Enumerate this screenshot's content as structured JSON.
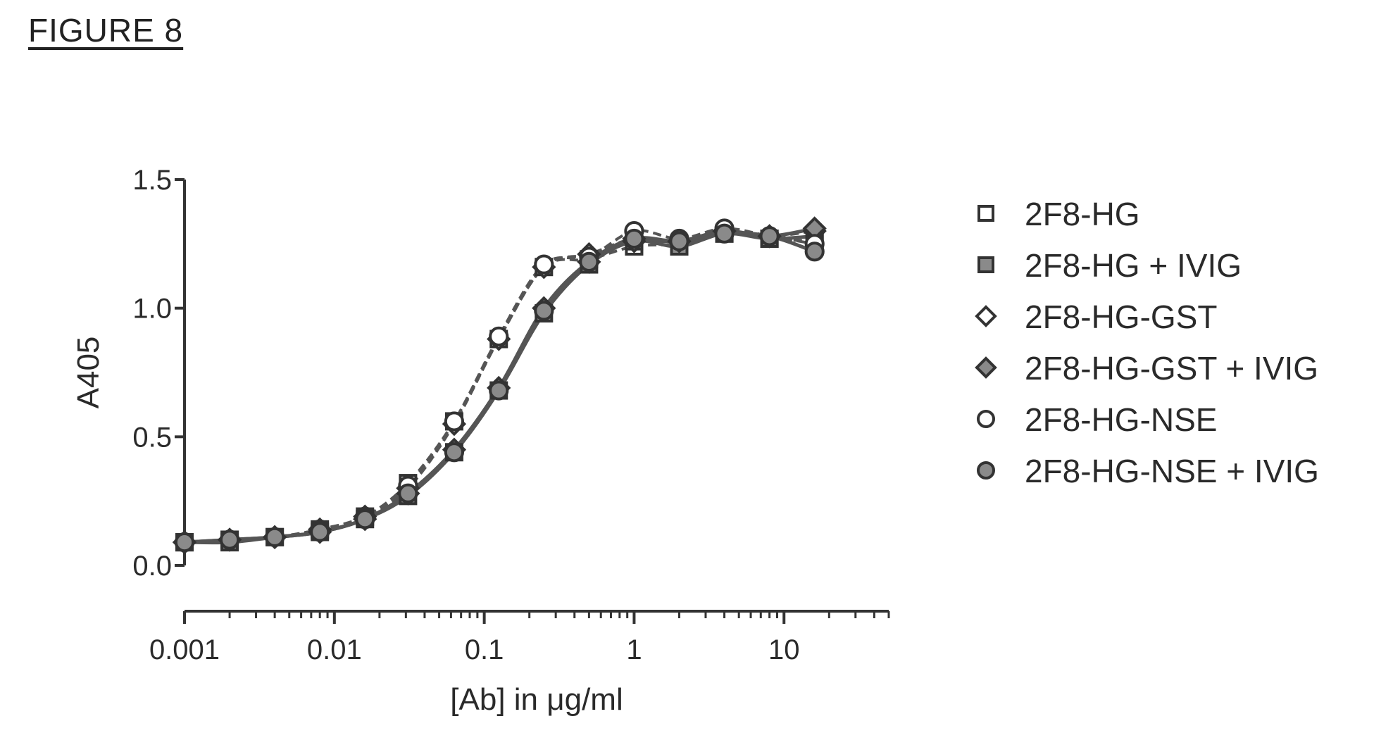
{
  "figure_label": "FIGURE 8",
  "chart_data": {
    "type": "scatter",
    "xlabel": "[Ab] in μg/ml",
    "ylabel": "A405",
    "x_scale": "log",
    "xlim": [
      0.001,
      50
    ],
    "ylim": [
      0,
      1.5
    ],
    "x_ticks": [
      0.001,
      0.01,
      0.1,
      1,
      10
    ],
    "x_tick_labels": [
      "0.001",
      "0.01",
      "0.1",
      "1",
      "10"
    ],
    "y_ticks": [
      0.0,
      0.5,
      1.0,
      1.5
    ],
    "y_tick_labels": [
      "0.0",
      "0.5",
      "1.0",
      "1.5"
    ],
    "grid": false,
    "legend_position": "right",
    "series": [
      {
        "name": "2F8-HG",
        "marker": "square-open",
        "line": "dashed",
        "x": [
          0.001,
          0.002,
          0.004,
          0.008,
          0.016,
          0.031,
          0.063,
          0.125,
          0.25,
          0.5,
          1,
          2,
          4,
          8,
          16
        ],
        "y": [
          0.09,
          0.1,
          0.11,
          0.14,
          0.19,
          0.32,
          0.56,
          0.88,
          1.16,
          1.19,
          1.24,
          1.25,
          1.29,
          1.27,
          1.26
        ]
      },
      {
        "name": "2F8-HG + IVIG",
        "marker": "square-filled",
        "line": "solid",
        "x": [
          0.001,
          0.002,
          0.004,
          0.008,
          0.016,
          0.031,
          0.063,
          0.125,
          0.25,
          0.5,
          1,
          2,
          4,
          8,
          16
        ],
        "y": [
          0.09,
          0.09,
          0.11,
          0.13,
          0.18,
          0.27,
          0.44,
          0.68,
          0.98,
          1.17,
          1.26,
          1.24,
          1.29,
          1.27,
          1.28
        ]
      },
      {
        "name": "2F8-HG-GST",
        "marker": "diamond-open",
        "line": "dashed",
        "x": [
          0.001,
          0.002,
          0.004,
          0.008,
          0.016,
          0.031,
          0.063,
          0.125,
          0.25,
          0.5,
          1,
          2,
          4,
          8,
          16
        ],
        "y": [
          0.09,
          0.1,
          0.11,
          0.14,
          0.19,
          0.3,
          0.55,
          0.88,
          1.16,
          1.21,
          1.27,
          1.26,
          1.3,
          1.28,
          1.3
        ]
      },
      {
        "name": "2F8-HG-GST + IVIG",
        "marker": "diamond-filled",
        "line": "solid",
        "x": [
          0.001,
          0.002,
          0.004,
          0.008,
          0.016,
          0.031,
          0.063,
          0.125,
          0.25,
          0.5,
          1,
          2,
          4,
          8,
          16
        ],
        "y": [
          0.09,
          0.1,
          0.11,
          0.13,
          0.18,
          0.28,
          0.45,
          0.69,
          1.0,
          1.18,
          1.26,
          1.26,
          1.3,
          1.28,
          1.31
        ]
      },
      {
        "name": "2F8-HG-NSE",
        "marker": "circle-open",
        "line": "dashed",
        "x": [
          0.001,
          0.002,
          0.004,
          0.008,
          0.016,
          0.031,
          0.063,
          0.125,
          0.25,
          0.5,
          1,
          2,
          4,
          8,
          16
        ],
        "y": [
          0.09,
          0.1,
          0.11,
          0.14,
          0.19,
          0.31,
          0.56,
          0.89,
          1.17,
          1.2,
          1.3,
          1.27,
          1.31,
          1.28,
          1.25
        ]
      },
      {
        "name": "2F8-HG-NSE + IVIG",
        "marker": "circle-filled",
        "line": "solid",
        "x": [
          0.001,
          0.002,
          0.004,
          0.008,
          0.016,
          0.031,
          0.063,
          0.125,
          0.25,
          0.5,
          1,
          2,
          4,
          8,
          16
        ],
        "y": [
          0.09,
          0.1,
          0.11,
          0.13,
          0.18,
          0.28,
          0.44,
          0.68,
          0.99,
          1.18,
          1.27,
          1.26,
          1.29,
          1.28,
          1.22
        ]
      }
    ]
  }
}
